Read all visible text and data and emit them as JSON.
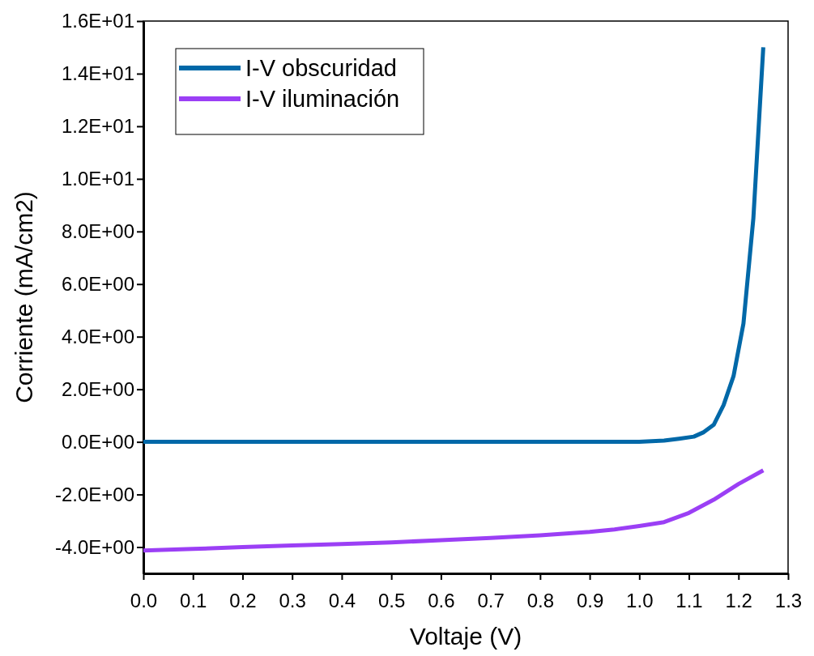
{
  "chart_data": {
    "type": "line",
    "xlabel": "Voltaje (V)",
    "ylabel": "Corriente (mA/cm2)",
    "xlim": [
      0,
      1.3
    ],
    "ylim": [
      -5,
      16
    ],
    "xticks": [
      {
        "value": 0,
        "label": "0.0"
      },
      {
        "value": 0.1,
        "label": "0.1"
      },
      {
        "value": 0.2,
        "label": "0.2"
      },
      {
        "value": 0.3,
        "label": "0.3"
      },
      {
        "value": 0.4,
        "label": "0.4"
      },
      {
        "value": 0.5,
        "label": "0.5"
      },
      {
        "value": 0.6,
        "label": "0.6"
      },
      {
        "value": 0.7,
        "label": "0.7"
      },
      {
        "value": 0.8,
        "label": "0.8"
      },
      {
        "value": 0.9,
        "label": "0.9"
      },
      {
        "value": 1,
        "label": "1.0"
      },
      {
        "value": 1.1,
        "label": "1.1"
      },
      {
        "value": 1.2,
        "label": "1.2"
      },
      {
        "value": 1.3,
        "label": "1.3"
      }
    ],
    "yticks": [
      {
        "value": -4,
        "label": "-4.0E+00"
      },
      {
        "value": -2,
        "label": "-2.0E+00"
      },
      {
        "value": 0,
        "label": "0.0E+00"
      },
      {
        "value": 2,
        "label": "2.0E+00"
      },
      {
        "value": 4,
        "label": "4.0E+00"
      },
      {
        "value": 6,
        "label": "6.0E+00"
      },
      {
        "value": 8,
        "label": "8.0E+00"
      },
      {
        "value": 10,
        "label": "1.0E+01"
      },
      {
        "value": 12,
        "label": "1.2E+01"
      },
      {
        "value": 14,
        "label": "1.4E+01"
      },
      {
        "value": 16,
        "label": "1.6E+01"
      }
    ],
    "grid": false,
    "legend": "top left",
    "marker": "none",
    "line_style": "solid",
    "series": [
      {
        "name": "I-V obscuridad",
        "color": "#0068a8",
        "x": [
          0,
          0.2,
          0.4,
          0.6,
          0.8,
          1.0,
          1.05,
          1.08,
          1.11,
          1.13,
          1.15,
          1.17,
          1.19,
          1.21,
          1.23,
          1.25
        ],
        "values": [
          0,
          0,
          0,
          0,
          0,
          0,
          0.05,
          0.12,
          0.2,
          0.37,
          0.65,
          1.4,
          2.5,
          4.5,
          8.5,
          15
        ]
      },
      {
        "name": "I-V iluminación",
        "color": "#9b3ff5",
        "x": [
          0,
          0.1,
          0.2,
          0.3,
          0.4,
          0.5,
          0.6,
          0.7,
          0.8,
          0.9,
          0.95,
          1.0,
          1.05,
          1.1,
          1.15,
          1.2,
          1.25
        ],
        "values": [
          -4.13,
          -4.07,
          -4.0,
          -3.94,
          -3.88,
          -3.82,
          -3.74,
          -3.65,
          -3.55,
          -3.42,
          -3.33,
          -3.2,
          -3.05,
          -2.7,
          -2.2,
          -1.6,
          -1.08
        ]
      }
    ]
  }
}
